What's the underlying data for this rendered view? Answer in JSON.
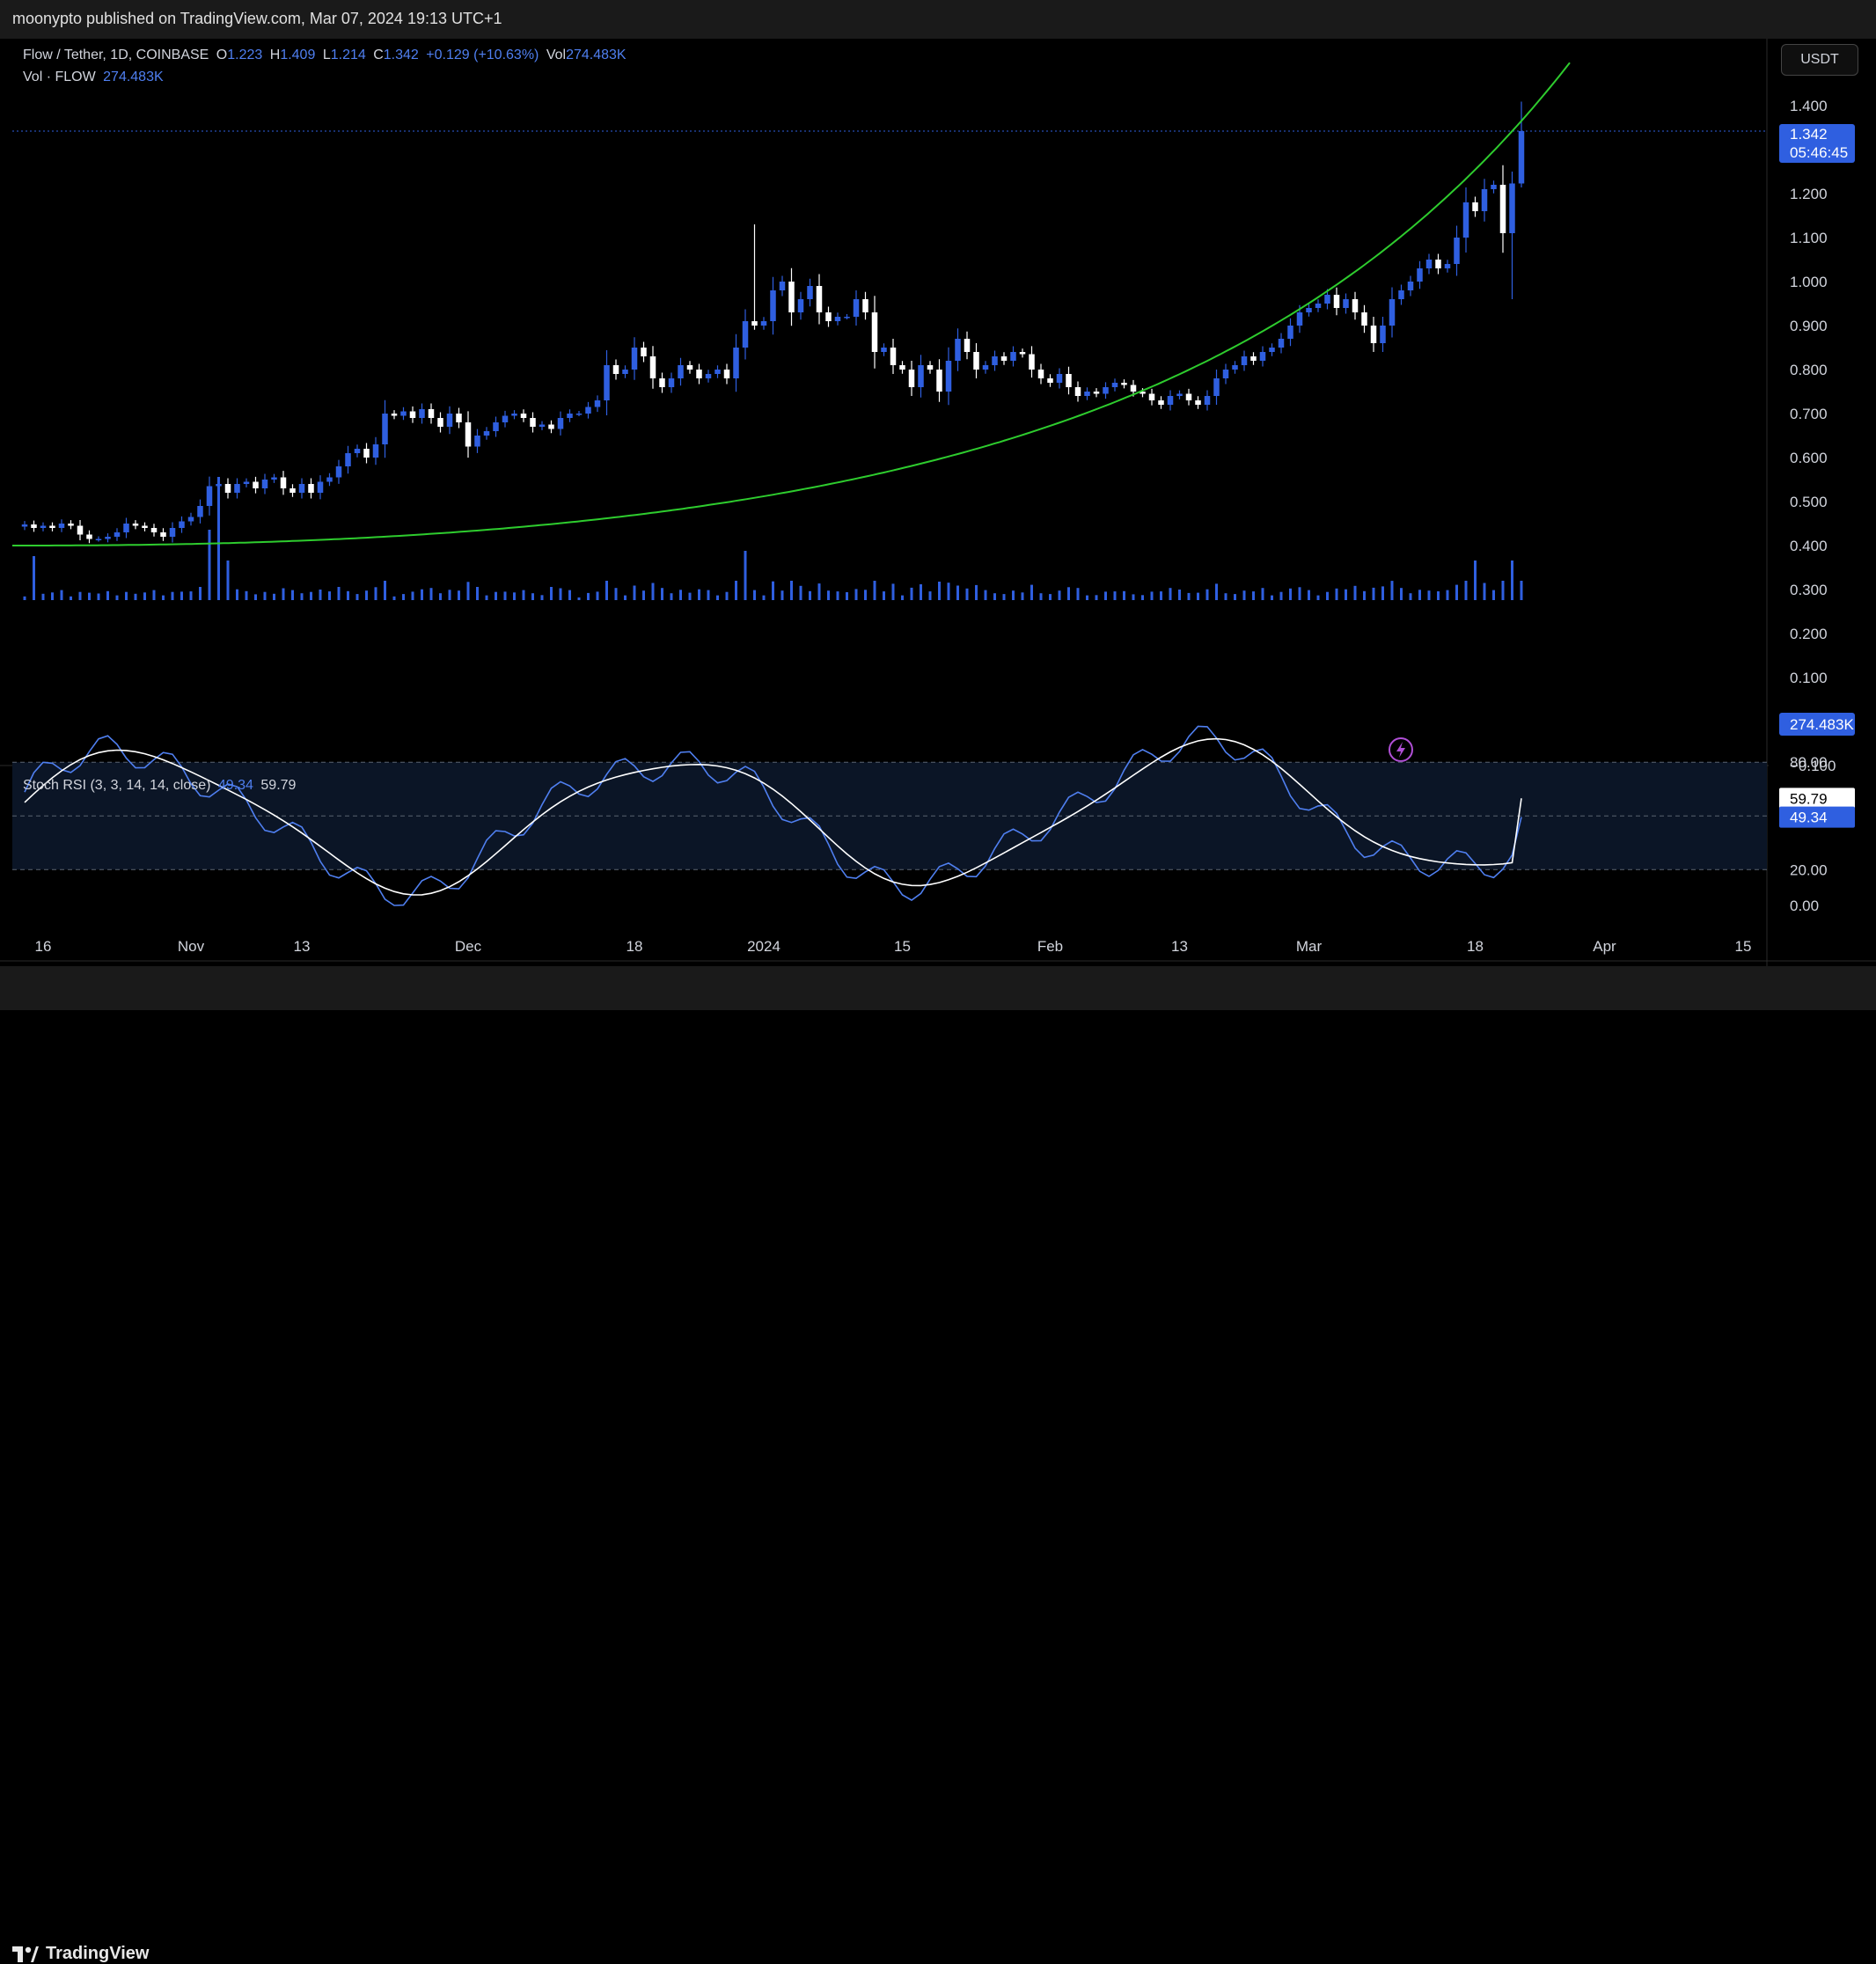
{
  "header": {
    "publisher": "moonypto published on TradingView.com, Mar 07, 2024 19:13 UTC+1"
  },
  "legend": {
    "symbol": "Flow / Tether, 1D, COINBASE",
    "o_label": "O",
    "o": "1.223",
    "h_label": "H",
    "h": "1.409",
    "l_label": "L",
    "l": "1.214",
    "c_label": "C",
    "c": "1.342",
    "change": "+0.129 (+10.63%)",
    "vol_label": "Vol",
    "vol": "274.483K",
    "vol_series": "Vol · FLOW",
    "vol_value": "274.483K"
  },
  "rsi_legend": {
    "name": "Stoch RSI (3, 3, 14, 14, close)",
    "k": "49.34",
    "d": "59.79"
  },
  "currency_button": "USDT",
  "footer": {
    "brand": "TradingView"
  },
  "colors": {
    "bull": "#2f5fe0",
    "bear": "#ffffff",
    "trend": "#2ecc2e",
    "k": "#4f7ff0",
    "d": "#ffffff",
    "background": "#000000"
  },
  "chart_data": {
    "type": "candlestick",
    "symbol": "FLOW/USDT",
    "timeframe": "1D",
    "price_axis": {
      "ticks": [
        "1.400",
        "1.200",
        "1.100",
        "1.000",
        "0.900",
        "0.800",
        "0.700",
        "0.600",
        "0.500",
        "0.400",
        "0.300",
        "0.200",
        "0.100",
        "−0.100"
      ],
      "tick_values": [
        1.4,
        1.2,
        1.1,
        1.0,
        0.9,
        0.8,
        0.7,
        0.6,
        0.5,
        0.4,
        0.3,
        0.2,
        0.1,
        -0.1
      ]
    },
    "last_price": {
      "value": "1.342",
      "countdown": "05:46:45"
    },
    "volume_label": "274.483K",
    "x_axis": {
      "labels": [
        "16",
        "Nov",
        "13",
        "Dec",
        "18",
        "2024",
        "15",
        "Feb",
        "13",
        "Mar",
        "18",
        "Apr",
        "15"
      ],
      "label_days": [
        2,
        18,
        30,
        48,
        66,
        80,
        95,
        111,
        125,
        139,
        157,
        171,
        186
      ]
    },
    "closes": [
      0.448,
      0.44,
      0.445,
      0.44,
      0.45,
      0.445,
      0.425,
      0.415,
      0.415,
      0.42,
      0.43,
      0.45,
      0.445,
      0.44,
      0.43,
      0.42,
      0.44,
      0.455,
      0.465,
      0.49,
      0.535,
      0.54,
      0.52,
      0.54,
      0.545,
      0.53,
      0.55,
      0.555,
      0.53,
      0.52,
      0.54,
      0.52,
      0.545,
      0.555,
      0.58,
      0.61,
      0.62,
      0.6,
      0.63,
      0.7,
      0.695,
      0.705,
      0.69,
      0.71,
      0.69,
      0.67,
      0.7,
      0.68,
      0.625,
      0.65,
      0.66,
      0.68,
      0.695,
      0.7,
      0.69,
      0.67,
      0.675,
      0.665,
      0.69,
      0.7,
      0.7,
      0.715,
      0.73,
      0.81,
      0.79,
      0.8,
      0.85,
      0.83,
      0.78,
      0.76,
      0.78,
      0.81,
      0.8,
      0.78,
      0.79,
      0.8,
      0.78,
      0.85,
      0.91,
      0.9,
      0.91,
      0.98,
      1.0,
      0.93,
      0.96,
      0.99,
      0.93,
      0.91,
      0.92,
      0.92,
      0.96,
      0.93,
      0.84,
      0.85,
      0.81,
      0.8,
      0.76,
      0.81,
      0.8,
      0.75,
      0.82,
      0.87,
      0.84,
      0.8,
      0.81,
      0.83,
      0.82,
      0.84,
      0.835,
      0.8,
      0.78,
      0.77,
      0.79,
      0.76,
      0.74,
      0.75,
      0.745,
      0.76,
      0.77,
      0.765,
      0.75,
      0.745,
      0.73,
      0.72,
      0.74,
      0.745,
      0.73,
      0.72,
      0.74,
      0.78,
      0.8,
      0.81,
      0.83,
      0.82,
      0.84,
      0.85,
      0.87,
      0.9,
      0.93,
      0.94,
      0.95,
      0.97,
      0.94,
      0.96,
      0.93,
      0.9,
      0.86,
      0.9,
      0.96,
      0.98,
      1.0,
      1.03,
      1.05,
      1.03,
      1.04,
      1.1,
      1.18,
      1.16,
      1.21,
      1.22,
      1.11,
      1.223,
      1.342
    ]
  },
  "trend_line": {
    "type": "parabolic-support",
    "start_price": 0.4,
    "end_price": 1.45
  },
  "stoch_rsi": {
    "levels": [
      "80.00",
      "20.00",
      "0.00"
    ],
    "level_values": [
      80,
      20,
      0
    ],
    "dashed_mid": 50,
    "k_last": 49.34,
    "d_last": 59.79
  }
}
